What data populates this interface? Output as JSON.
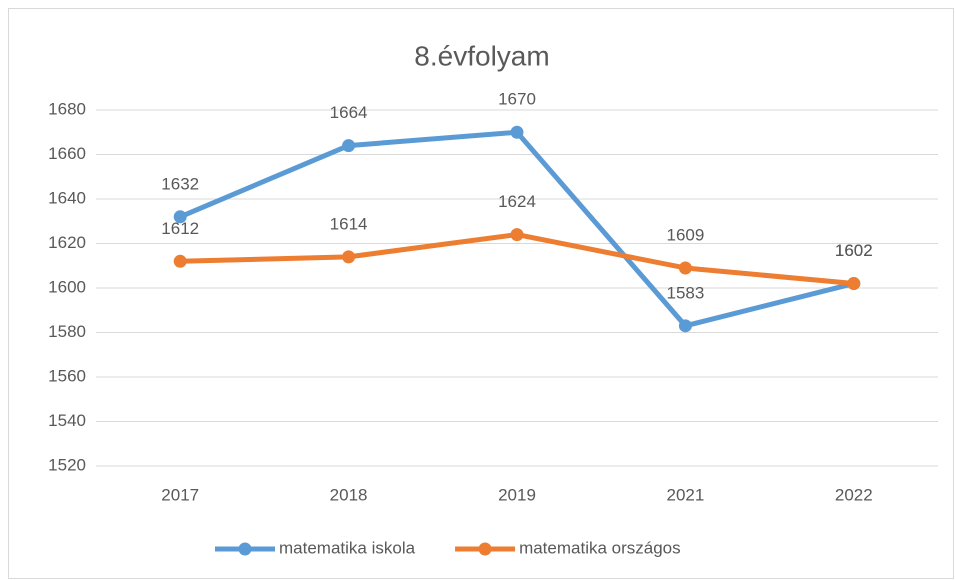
{
  "chart_data": {
    "type": "line",
    "title": "8.évfolyam",
    "categories": [
      "2017",
      "2018",
      "2019",
      "2021",
      "2022"
    ],
    "series": [
      {
        "name": "matematika iskola",
        "color": "#5b9bd5",
        "values": [
          1632,
          1664,
          1670,
          1583,
          1602
        ]
      },
      {
        "name": "matematika országos",
        "color": "#ed7d31",
        "values": [
          1612,
          1614,
          1624,
          1609,
          1602
        ]
      }
    ],
    "ylim": [
      1520,
      1680
    ],
    "yticks": [
      1520,
      1540,
      1560,
      1580,
      1600,
      1620,
      1640,
      1660,
      1680
    ],
    "grid": true,
    "legend": "bottom"
  }
}
